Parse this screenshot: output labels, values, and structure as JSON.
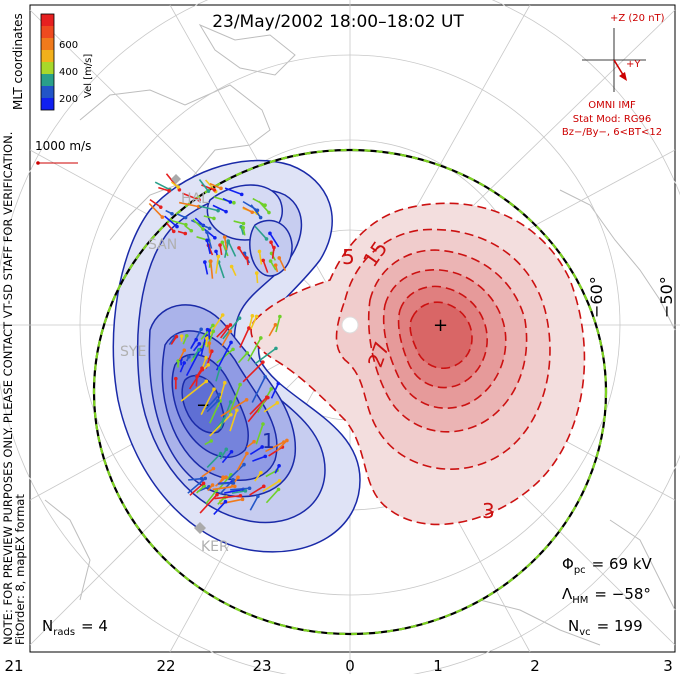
{
  "title": "23/May/2002 18:00–18:02 UT",
  "coords_label": "MLT coordinates",
  "colorbar": {
    "label": "Vel [m/s]",
    "ticks": [
      "600",
      "400",
      "200"
    ],
    "colors": [
      "#e62020",
      "#f07a1c",
      "#f2c81c",
      "#6fd02a",
      "#2aa08a",
      "#2255c8",
      "#1020f0"
    ]
  },
  "scale_vector": "1000 m/s",
  "note_line1": "NOTE: FOR PREVIEW PURPOSES ONLY. PLEASE CONTACT VT-SD STAFF FOR VERIFICATION.",
  "note_line2": "FitOrder: 8, mapEX format",
  "imf": {
    "z_label": "+Z (20 nT)",
    "y_label": "+Y",
    "title": "OMNI IMF",
    "stat_mod": "Stat Mod: RG96",
    "condition": "Bz−/By−, 6<BT<12"
  },
  "latitude_labels": [
    "−60°",
    "−50°"
  ],
  "stations": [
    "HAL",
    "SAN",
    "SYE",
    "KER"
  ],
  "contour_labels_pos": [
    "5",
    "15",
    "27",
    "3"
  ],
  "contour_labels_neg": [
    "1"
  ],
  "stats": {
    "phi_symbol": "Φ",
    "phi_sub": "pc",
    "phi_value": "= 69 kV",
    "lambda_symbol": "Λ",
    "lambda_sub": "HM",
    "lambda_value": "= −58°",
    "nvc_symbol": "N",
    "nvc_sub": "vc",
    "nvc_value": "= 199"
  },
  "nrads": {
    "symbol": "N",
    "sub": "rads",
    "value": "= 4"
  },
  "mlt_ticks": [
    "21",
    "22",
    "23",
    "0",
    "1",
    "2",
    "3"
  ],
  "colors": {
    "positive_contour": "#cc1111",
    "negative_contour": "#1a2aa8",
    "hmb": "#7ed321"
  }
}
